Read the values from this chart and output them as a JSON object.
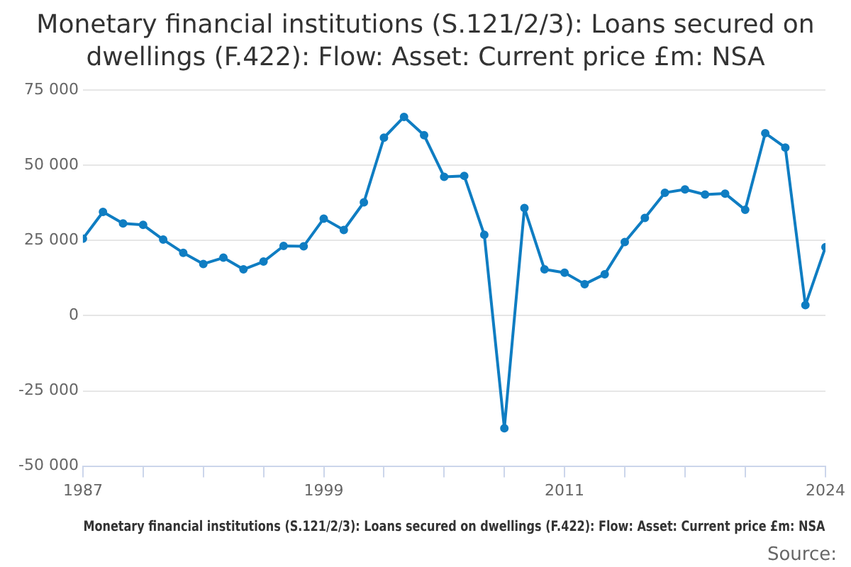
{
  "chart_data": {
    "type": "line",
    "title": "Monetary financial institutions (S.121/2/3): Loans secured on dwellings (F.422): Flow: Asset: Current price £m: NSA",
    "xlabel": "Monetary financial institutions (S.121/2/3): Loans secured on dwellings (F.422): Flow: Asset: Current price £m: NSA",
    "annotations": [
      "Source:"
    ],
    "x": [
      1987,
      1988,
      1989,
      1990,
      1991,
      1992,
      1993,
      1994,
      1995,
      1996,
      1997,
      1998,
      1999,
      2000,
      2001,
      2002,
      2003,
      2004,
      2005,
      2006,
      2007,
      2008,
      2009,
      2010,
      2011,
      2012,
      2013,
      2014,
      2015,
      2016,
      2017,
      2018,
      2019,
      2020,
      2021,
      2022,
      2023,
      2024
    ],
    "series": [
      {
        "color": "#0f7dc2",
        "values": [
          25600,
          34500,
          30700,
          30200,
          25300,
          20900,
          17200,
          19300,
          15400,
          18000,
          23200,
          23100,
          32300,
          28500,
          37700,
          59200,
          66100,
          60000,
          46200,
          46500,
          26900,
          -37400,
          35800,
          15400,
          14300,
          10500,
          13800,
          24500,
          32500,
          40900,
          42000,
          40300,
          40600,
          35200,
          60700,
          55900,
          3500,
          22800
        ]
      }
    ],
    "xlim": [
      1987,
      2024
    ],
    "xticks": [
      1987,
      {
        "value": 1990,
        "label": null
      },
      {
        "value": 1993,
        "label": null
      },
      {
        "value": 1996,
        "label": null
      },
      1999,
      {
        "value": 2002,
        "label": null
      },
      {
        "value": 2005,
        "label": null
      },
      {
        "value": 2008,
        "label": null
      },
      2011,
      {
        "value": 2014,
        "label": null
      },
      {
        "value": 2017,
        "label": null
      },
      {
        "value": 2020,
        "label": null
      },
      2024
    ],
    "ylim": [
      -50000,
      75000
    ],
    "yticks": [
      {
        "value": -50000,
        "label": "-50 000"
      },
      {
        "value": -25000,
        "label": "-25 000"
      },
      {
        "value": 0,
        "label": "0"
      },
      {
        "value": 25000,
        "label": "25 000"
      },
      {
        "value": 50000,
        "label": "50 000"
      },
      {
        "value": 75000,
        "label": "75 000"
      }
    ],
    "grid": "y",
    "legend": false,
    "marker": "circle",
    "line_style": "solid"
  }
}
